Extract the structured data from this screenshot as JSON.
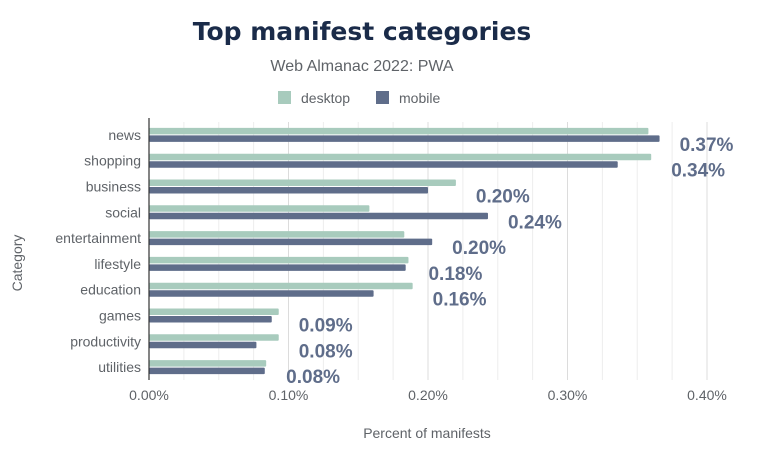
{
  "chart_data": {
    "type": "bar",
    "orientation": "horizontal",
    "title": "Top manifest categories",
    "subtitle": "Web Almanac 2022: PWA",
    "xlabel": "Percent of manifests",
    "ylabel": "Category",
    "categories": [
      "news",
      "shopping",
      "business",
      "social",
      "entertainment",
      "lifestyle",
      "education",
      "games",
      "productivity",
      "utilities"
    ],
    "series": [
      {
        "name": "desktop",
        "color": "#a8cbbd",
        "values": [
          0.358,
          0.36,
          0.22,
          0.158,
          0.183,
          0.186,
          0.189,
          0.093,
          0.093,
          0.084
        ]
      },
      {
        "name": "mobile",
        "color": "#5f6d8a",
        "values": [
          0.366,
          0.336,
          0.2,
          0.243,
          0.203,
          0.184,
          0.161,
          0.088,
          0.077,
          0.083
        ]
      }
    ],
    "data_labels": [
      "0.37%",
      "0.34%",
      "0.20%",
      "0.24%",
      "0.20%",
      "0.18%",
      "0.16%",
      "0.09%",
      "0.08%",
      "0.08%"
    ],
    "xticks": [
      "0.00%",
      "0.10%",
      "0.20%",
      "0.30%",
      "0.40%"
    ],
    "xlim": [
      0,
      0.4
    ],
    "grid": true,
    "legend_position": "top"
  }
}
